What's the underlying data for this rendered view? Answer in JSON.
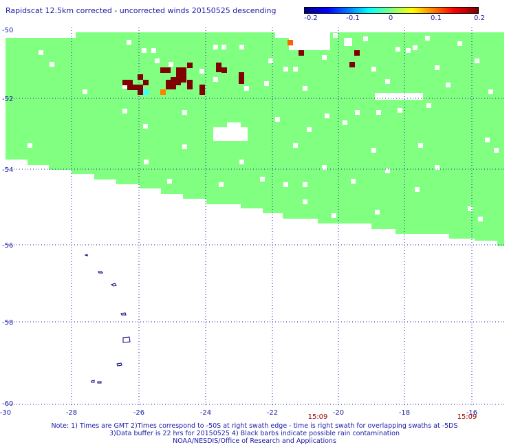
{
  "title": "Rapidscat 12.5km corrected - uncorrected winds 20150525 descending",
  "colorbar": {
    "labels": [
      "-0.2",
      "-0.1",
      "0",
      "0.1",
      "0.2"
    ],
    "colors": [
      "#000080",
      "#0000ff",
      "#00ffff",
      "#80ff80",
      "#ffff00",
      "#ff8000",
      "#ff0000",
      "#800000"
    ]
  },
  "map": {
    "lon_ticks": [
      "-30",
      "-28",
      "-26",
      "-24",
      "-22",
      "-20",
      "-18",
      "-16"
    ],
    "lat_ticks": [
      "-50",
      "-52",
      "-54",
      "-56",
      "-58",
      "-60"
    ],
    "swath_times": [
      "15:09",
      "15:09"
    ],
    "land_color": "#80ff80",
    "anomaly_color": "#800000"
  },
  "notes": [
    "Note: 1) Times are GMT 2)Times correspond to -50S at right swath edge - time is right swath for overlapping swaths at -5DS",
    "3)Data buffer is 22 hrs for 20150525 4) Black barbs indicate possible rain contamination",
    "NOAA/NESDIS/Office of Research and Applications"
  ]
}
